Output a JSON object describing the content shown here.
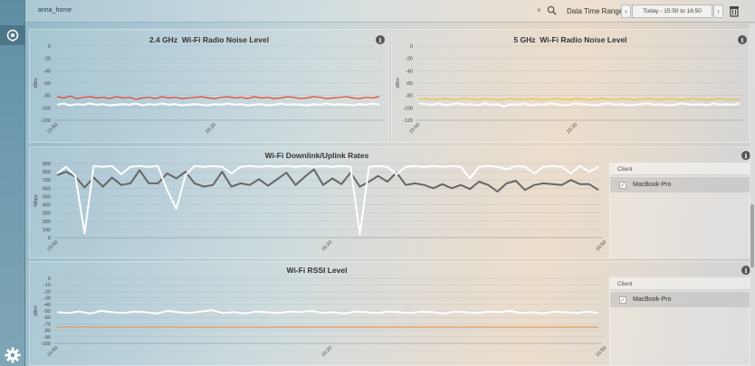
{
  "topbar": {
    "site_name": "anna_home",
    "clear_glyph": "×",
    "date_time_range_label": "Data Time Range:",
    "date_time_range_value": "Today - 15:50 to 16:50",
    "prev_glyph": "‹",
    "next_glyph": "›"
  },
  "icons": {
    "sidebar_active": "network-icon",
    "settings": "gear-icon",
    "search": "search-icon",
    "delete": "trash-icon",
    "info": "info-icon"
  },
  "info_glyph": "i",
  "colors": {
    "sidebar": "#6a94a8",
    "line_white": "#ffffff",
    "line_dark": "#666666",
    "noise_red": "#e0452a",
    "noise_yellow": "#e8c23a",
    "threshold_orange": "#e39a5a"
  },
  "panels": {
    "noise24": {
      "band": "2.4 GHz",
      "title": "Wi-Fi Radio Noise Level"
    },
    "noise5": {
      "band": "5 GHz",
      "title": "Wi-Fi Radio Noise Level"
    },
    "rates": {
      "title": "Wi-Fi Downlink/Uplink Rates",
      "client_header": "Client",
      "client_name": "MacBook-Pro"
    },
    "rssi": {
      "title": "Wi-Fi RSSI Level",
      "client_header": "Client",
      "client_name": "MacBook-Pro"
    }
  },
  "chart_data": [
    {
      "type": "line",
      "ylabel": "dBm",
      "ylim": [
        -120,
        0
      ],
      "yticks": [
        "0",
        "-20",
        "-40",
        "-60",
        "-80",
        "-100",
        "-120"
      ],
      "xticks": [
        "15:50",
        "16:20"
      ],
      "series": [
        {
          "color": "#ffffff",
          "values": [
            -95,
            -93,
            -96,
            -94,
            -95,
            -93,
            -95,
            -94,
            -96,
            -95,
            -94,
            -95,
            -93,
            -96,
            -94,
            -95,
            -93,
            -95,
            -94,
            -96,
            -95,
            -94,
            -95,
            -96,
            -94,
            -95,
            -93,
            -95,
            -94,
            -96,
            -95,
            -94,
            -96,
            -95,
            -93,
            -95,
            -94,
            -95,
            -96,
            -94,
            -95,
            -93,
            -95,
            -94,
            -95,
            -96,
            -94,
            -95,
            -93,
            -95
          ]
        },
        {
          "color": "#e0452a",
          "values": [
            -82,
            -84,
            -81,
            -85,
            -83,
            -82,
            -84,
            -83,
            -85,
            -82,
            -84,
            -83,
            -86,
            -84,
            -83,
            -85,
            -82,
            -84,
            -83,
            -85,
            -84,
            -83,
            -82,
            -84,
            -85,
            -83,
            -82,
            -84,
            -83,
            -85,
            -82,
            -84,
            -83,
            -85,
            -84,
            -82,
            -83,
            -85,
            -84,
            -82,
            -83,
            -85,
            -84,
            -83,
            -82,
            -84,
            -85,
            -83,
            -84,
            -82
          ]
        }
      ]
    },
    {
      "type": "line",
      "ylabel": "dBm",
      "ylim": [
        -120,
        0
      ],
      "yticks": [
        "0",
        "-20",
        "-40",
        "-60",
        "-80",
        "-100",
        "-120"
      ],
      "xticks": [
        "15:50",
        "16:20"
      ],
      "series": [
        {
          "color": "#ffffff",
          "values": [
            -93,
            -94,
            -95,
            -93,
            -96,
            -94,
            -93,
            -95,
            -94,
            -96,
            -93,
            -95,
            -94,
            -98,
            -94,
            -95,
            -93,
            -96,
            -94,
            -95,
            -93,
            -94,
            -96,
            -95,
            -93,
            -94,
            -95,
            -96,
            -94,
            -93,
            -95,
            -94,
            -96,
            -95,
            -94,
            -93,
            -95,
            -94,
            -96,
            -95,
            -93,
            -94,
            -95,
            -94,
            -96,
            -93,
            -95,
            -94,
            -95,
            -93
          ]
        },
        {
          "color": "#e8c23a",
          "values": [
            -86,
            -85,
            -87,
            -86,
            -85,
            -87,
            -86,
            -85,
            -86,
            -87,
            -85,
            -86,
            -87,
            -86,
            -85,
            -86,
            -87,
            -85,
            -86,
            -87,
            -86,
            -85,
            -86,
            -87,
            -85,
            -86,
            -87,
            -86,
            -85,
            -86,
            -87,
            -85,
            -86,
            -87,
            -86,
            -85,
            -86,
            -87,
            -85,
            -86,
            -87,
            -86,
            -85,
            -86,
            -87,
            -86,
            -85,
            -86,
            -87,
            -86
          ]
        }
      ]
    },
    {
      "type": "line",
      "ylabel": "Mbps",
      "ylim": [
        0,
        900
      ],
      "yticks": [
        "900",
        "800",
        "700",
        "600",
        "500",
        "400",
        "300",
        "200",
        "100",
        "0"
      ],
      "xticks": [
        "15:50",
        "16:20",
        "16:50"
      ],
      "series": [
        {
          "color": "#ffffff",
          "values": [
            780,
            860,
            750,
            50,
            870,
            860,
            870,
            770,
            860,
            870,
            860,
            870,
            580,
            350,
            760,
            870,
            860,
            870,
            860,
            780,
            860,
            870,
            860,
            870,
            860,
            870,
            860,
            870,
            860,
            870,
            860,
            870,
            860,
            40,
            860,
            870,
            860,
            770,
            860,
            870,
            860,
            870,
            860,
            870,
            860,
            720,
            860,
            870,
            860,
            830,
            870,
            860,
            780,
            860,
            870,
            860,
            780,
            870,
            800,
            860
          ]
        },
        {
          "color": "#666666",
          "values": [
            760,
            800,
            740,
            610,
            730,
            620,
            730,
            640,
            660,
            820,
            660,
            660,
            780,
            720,
            800,
            660,
            620,
            640,
            800,
            620,
            660,
            640,
            710,
            630,
            710,
            790,
            640,
            740,
            830,
            640,
            720,
            650,
            790,
            620,
            680,
            750,
            680,
            790,
            640,
            660,
            640,
            600,
            650,
            600,
            640,
            590,
            680,
            640,
            560,
            660,
            690,
            580,
            640,
            660,
            650,
            640,
            700,
            650,
            650,
            580
          ]
        }
      ]
    },
    {
      "type": "line",
      "ylabel": "dBm",
      "ylim": [
        -100,
        0
      ],
      "yticks": [
        "0",
        "-10",
        "-20",
        "-30",
        "-40",
        "-50",
        "-60",
        "-70",
        "-80",
        "-90",
        "-100"
      ],
      "xticks": [
        "15:50",
        "16:20",
        "16:50"
      ],
      "series": [
        {
          "color": "#ffffff",
          "values": [
            -52,
            -53,
            -51,
            -54,
            -50,
            -52,
            -53,
            -51,
            -52,
            -54,
            -50,
            -52,
            -53,
            -51,
            -49,
            -53,
            -52,
            -54,
            -51,
            -52,
            -53,
            -51,
            -52,
            -50,
            -53,
            -52,
            -54,
            -51,
            -52,
            -53,
            -51,
            -52,
            -53,
            -51,
            -52,
            -54,
            -51,
            -52,
            -53,
            -51,
            -52,
            -50,
            -53,
            -52,
            -54,
            -51,
            -52,
            -53,
            -51,
            -53
          ]
        },
        {
          "color": "#e39a5a",
          "values": [
            -75,
            -75,
            -75,
            -75,
            -75,
            -75,
            -75,
            -75,
            -75,
            -75,
            -75,
            -75,
            -75,
            -75,
            -75,
            -75,
            -75,
            -75,
            -75,
            -75,
            -75,
            -75,
            -75,
            -75,
            -75,
            -75,
            -75,
            -75,
            -75,
            -75,
            -75,
            -75,
            -75,
            -75,
            -75,
            -75,
            -75,
            -75,
            -75,
            -75,
            -75,
            -75,
            -75,
            -75,
            -75,
            -75,
            -75,
            -75,
            -75,
            -75
          ]
        }
      ]
    }
  ]
}
